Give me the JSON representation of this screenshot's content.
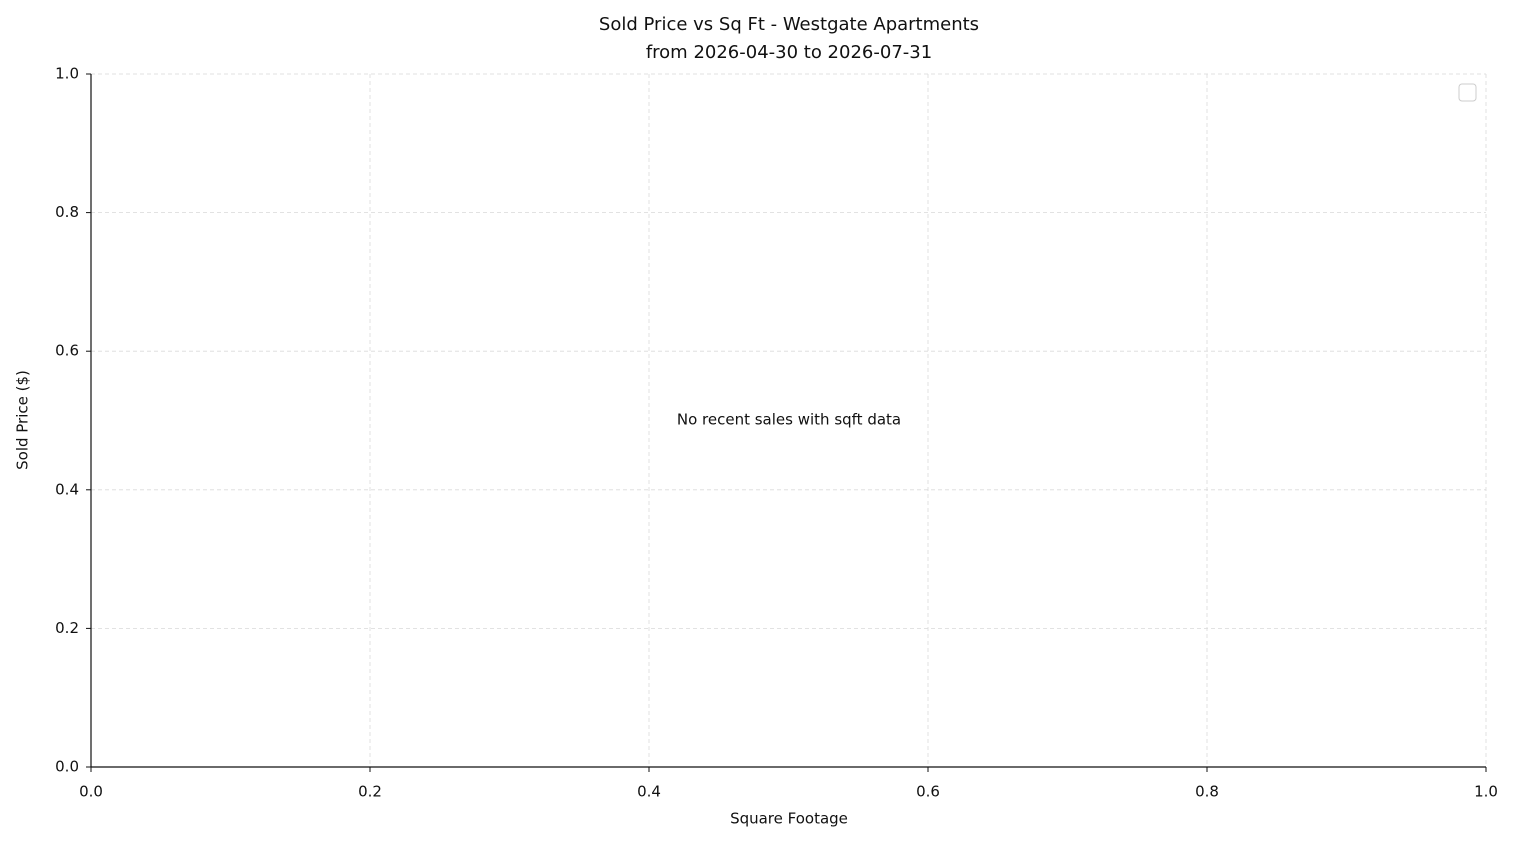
{
  "chart_data": {
    "type": "scatter",
    "title": "Sold Price vs Sq Ft - Westgate Apartments",
    "subtitle": "from 2026-04-30 to 2026-07-31",
    "x_label": "Square Footage",
    "y_label": "Sold Price ($)",
    "annotation": "No recent sales with sqft data",
    "xlim": [
      0,
      1
    ],
    "ylim": [
      0,
      1
    ],
    "xticks": [
      {
        "value": 0,
        "label": "0.0"
      },
      {
        "value": 0.2,
        "label": "0.2"
      },
      {
        "value": 0.4,
        "label": "0.4"
      },
      {
        "value": 0.6,
        "label": "0.6"
      },
      {
        "value": 0.8,
        "label": "0.8"
      },
      {
        "value": 1,
        "label": "1.0"
      }
    ],
    "yticks": [
      {
        "value": 0,
        "label": "0.0"
      },
      {
        "value": 0.2,
        "label": "0.2"
      },
      {
        "value": 0.4,
        "label": "0.4"
      },
      {
        "value": 0.6,
        "label": "0.6"
      },
      {
        "value": 0.8,
        "label": "0.8"
      },
      {
        "value": 1,
        "label": "1.0"
      }
    ],
    "grid": true
  }
}
